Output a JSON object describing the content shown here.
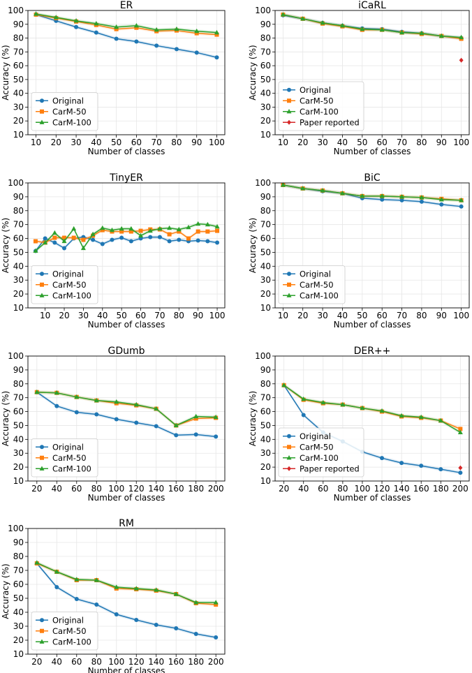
{
  "colors": {
    "original": "#1f77b4",
    "carm50": "#ff7f0e",
    "carm100": "#2ca02c",
    "paper": "#d62728",
    "grid": "#e6e6e6"
  },
  "chart_data": [
    {
      "type": "line",
      "title": "ER",
      "xlabel": "Number of classes",
      "ylabel": "Accuracy (%)",
      "xlim": [
        6,
        104
      ],
      "ylim": [
        10,
        100
      ],
      "xticks": [
        10,
        20,
        30,
        40,
        50,
        60,
        70,
        80,
        90,
        100
      ],
      "yticks": [
        10,
        20,
        30,
        40,
        50,
        60,
        70,
        80,
        90,
        100
      ],
      "grid": true,
      "legend_position": "lower-left",
      "series": [
        {
          "name": "Original",
          "key": "original",
          "marker": "circle",
          "x": [
            10,
            20,
            30,
            40,
            50,
            60,
            70,
            80,
            90,
            100
          ],
          "y": [
            97,
            92.5,
            88,
            84,
            79.5,
            77.5,
            74.5,
            72,
            69.5,
            66
          ]
        },
        {
          "name": "CarM-50",
          "key": "carm50",
          "marker": "square",
          "x": [
            10,
            20,
            30,
            40,
            50,
            60,
            70,
            80,
            90,
            100
          ],
          "y": [
            97,
            94.5,
            92,
            89.5,
            86.5,
            87.5,
            85,
            85.5,
            83.5,
            82.5
          ]
        },
        {
          "name": "CarM-100",
          "key": "carm100",
          "marker": "triangle",
          "x": [
            10,
            20,
            30,
            40,
            50,
            60,
            70,
            80,
            90,
            100
          ],
          "y": [
            97.5,
            95,
            92.5,
            90.5,
            88,
            89,
            86,
            86.5,
            85,
            84
          ]
        }
      ]
    },
    {
      "type": "line",
      "title": "iCaRL",
      "xlabel": "Number of classes",
      "ylabel": "Accuracy (%)",
      "xlim": [
        6,
        104
      ],
      "ylim": [
        10,
        100
      ],
      "xticks": [
        10,
        20,
        30,
        40,
        50,
        60,
        70,
        80,
        90,
        100
      ],
      "yticks": [
        10,
        20,
        30,
        40,
        50,
        60,
        70,
        80,
        90,
        100
      ],
      "grid": true,
      "legend_position": "lower-left",
      "series": [
        {
          "name": "Original",
          "key": "original",
          "marker": "circle",
          "x": [
            10,
            20,
            30,
            40,
            50,
            60,
            70,
            80,
            90,
            100
          ],
          "y": [
            96.5,
            94,
            91,
            89,
            87,
            86.5,
            84.5,
            83.5,
            81.5,
            80
          ]
        },
        {
          "name": "CarM-50",
          "key": "carm50",
          "marker": "square",
          "x": [
            10,
            20,
            30,
            40,
            50,
            60,
            70,
            80,
            90,
            100
          ],
          "y": [
            97,
            94,
            90.5,
            88.5,
            86,
            86,
            84,
            83,
            81.5,
            79.5
          ]
        },
        {
          "name": "CarM-100",
          "key": "carm100",
          "marker": "triangle",
          "x": [
            10,
            20,
            30,
            40,
            50,
            60,
            70,
            80,
            90,
            100
          ],
          "y": [
            97,
            94,
            91,
            89,
            86.5,
            86,
            84,
            83.5,
            81.5,
            80.5
          ]
        },
        {
          "name": "Paper reported",
          "key": "paper",
          "marker": "diamond",
          "x": [
            100
          ],
          "y": [
            64
          ]
        }
      ]
    },
    {
      "type": "line",
      "title": "TinyER",
      "xlabel": "Number of classes",
      "ylabel": "Accuracy (%)",
      "xlim": [
        1,
        104
      ],
      "ylim": [
        10,
        100
      ],
      "xticks": [
        10,
        20,
        30,
        40,
        50,
        60,
        70,
        80,
        90,
        100
      ],
      "yticks": [
        10,
        20,
        30,
        40,
        50,
        60,
        70,
        80,
        90,
        100
      ],
      "grid": true,
      "legend_position": "lower-left",
      "series": [
        {
          "name": "Original",
          "key": "original",
          "marker": "circle",
          "x": [
            5,
            10,
            15,
            20,
            25,
            30,
            35,
            40,
            45,
            50,
            55,
            60,
            65,
            70,
            75,
            80,
            85,
            90,
            95,
            100
          ],
          "y": [
            51,
            60,
            57,
            53,
            60,
            61,
            59,
            56,
            59,
            60.5,
            58,
            60,
            61,
            61,
            58,
            59,
            58,
            58.5,
            58,
            57
          ]
        },
        {
          "name": "CarM-50",
          "key": "carm50",
          "marker": "square",
          "x": [
            5,
            10,
            15,
            20,
            25,
            30,
            35,
            40,
            45,
            50,
            55,
            60,
            65,
            70,
            75,
            80,
            85,
            90,
            95,
            100
          ],
          "y": [
            58,
            57,
            60.5,
            60.5,
            60.5,
            59,
            62,
            66,
            65,
            65,
            65,
            65.5,
            66.5,
            66.5,
            63,
            65,
            60,
            65,
            65,
            65.5
          ]
        },
        {
          "name": "CarM-100",
          "key": "carm100",
          "marker": "triangle",
          "x": [
            5,
            10,
            15,
            20,
            25,
            30,
            35,
            40,
            45,
            50,
            55,
            60,
            65,
            70,
            75,
            80,
            85,
            90,
            95,
            100
          ],
          "y": [
            51,
            57,
            64,
            58,
            67,
            53,
            63,
            67.5,
            66,
            67,
            67,
            62,
            65.5,
            67,
            67.5,
            66.5,
            68,
            70.5,
            70,
            68.5
          ]
        }
      ]
    },
    {
      "type": "line",
      "title": "BiC",
      "xlabel": "Number of classes",
      "ylabel": "Accuracy (%)",
      "xlim": [
        6,
        104
      ],
      "ylim": [
        10,
        100
      ],
      "xticks": [
        10,
        20,
        30,
        40,
        50,
        60,
        70,
        80,
        90,
        100
      ],
      "yticks": [
        10,
        20,
        30,
        40,
        50,
        60,
        70,
        80,
        90,
        100
      ],
      "grid": true,
      "legend_position": "lower-left",
      "series": [
        {
          "name": "Original",
          "key": "original",
          "marker": "circle",
          "x": [
            10,
            20,
            30,
            40,
            50,
            60,
            70,
            80,
            90,
            100
          ],
          "y": [
            98.5,
            96,
            94,
            92.5,
            89,
            88,
            87.5,
            86.5,
            84.5,
            83
          ]
        },
        {
          "name": "CarM-50",
          "key": "carm50",
          "marker": "square",
          "x": [
            10,
            20,
            30,
            40,
            50,
            60,
            70,
            80,
            90,
            100
          ],
          "y": [
            98.5,
            96,
            94.5,
            92.5,
            90.5,
            90.5,
            90,
            89.5,
            88.5,
            87.5
          ]
        },
        {
          "name": "CarM-100",
          "key": "carm100",
          "marker": "triangle",
          "x": [
            10,
            20,
            30,
            40,
            50,
            60,
            70,
            80,
            90,
            100
          ],
          "y": [
            98.5,
            96,
            94.5,
            92.5,
            90.5,
            90.5,
            90,
            89.5,
            88,
            87.5
          ]
        }
      ]
    },
    {
      "type": "line",
      "title": "GDumb",
      "xlabel": "Number of classes",
      "ylabel": "Accuracy (%)",
      "xlim": [
        11,
        209
      ],
      "ylim": [
        10,
        100
      ],
      "xticks": [
        20,
        40,
        60,
        80,
        100,
        120,
        140,
        160,
        180,
        200
      ],
      "yticks": [
        10,
        20,
        30,
        40,
        50,
        60,
        70,
        80,
        90,
        100
      ],
      "grid": true,
      "legend_position": "lower-left",
      "series": [
        {
          "name": "Original",
          "key": "original",
          "marker": "circle",
          "x": [
            20,
            40,
            60,
            80,
            100,
            120,
            140,
            160,
            180,
            200
          ],
          "y": [
            74,
            64,
            59.5,
            58,
            54.5,
            52,
            49.5,
            43,
            43.5,
            42
          ]
        },
        {
          "name": "CarM-50",
          "key": "carm50",
          "marker": "square",
          "x": [
            20,
            40,
            60,
            80,
            100,
            120,
            140,
            160,
            180,
            200
          ],
          "y": [
            74,
            73.5,
            70.5,
            68,
            66,
            64.5,
            62,
            50,
            55,
            55.5
          ]
        },
        {
          "name": "CarM-100",
          "key": "carm100",
          "marker": "triangle",
          "x": [
            20,
            40,
            60,
            80,
            100,
            120,
            140,
            160,
            180,
            200
          ],
          "y": [
            74,
            73.5,
            70.5,
            68,
            67,
            65,
            62,
            50,
            56.5,
            56
          ]
        }
      ]
    },
    {
      "type": "line",
      "title": "DER++",
      "xlabel": "Number of classes",
      "ylabel": "Accuracy (%)",
      "xlim": [
        11,
        209
      ],
      "ylim": [
        10,
        100
      ],
      "xticks": [
        20,
        40,
        60,
        80,
        100,
        120,
        140,
        160,
        180,
        200
      ],
      "yticks": [
        10,
        20,
        30,
        40,
        50,
        60,
        70,
        80,
        90,
        100
      ],
      "grid": true,
      "legend_position": "lower-left",
      "series": [
        {
          "name": "Original",
          "key": "original",
          "marker": "circle",
          "x": [
            20,
            40,
            60,
            80,
            100,
            120,
            140,
            160,
            180,
            200
          ],
          "y": [
            79,
            57.5,
            45,
            38.5,
            31,
            26.5,
            23,
            21,
            18.5,
            16
          ]
        },
        {
          "name": "CarM-50",
          "key": "carm50",
          "marker": "square",
          "x": [
            20,
            40,
            60,
            80,
            100,
            120,
            140,
            160,
            180,
            200
          ],
          "y": [
            79,
            68.5,
            66,
            65,
            62.5,
            60,
            56.5,
            55.5,
            53.5,
            47.5
          ]
        },
        {
          "name": "CarM-100",
          "key": "carm100",
          "marker": "triangle",
          "x": [
            20,
            40,
            60,
            80,
            100,
            120,
            140,
            160,
            180,
            200
          ],
          "y": [
            79,
            69,
            66.5,
            65,
            62.5,
            60.5,
            57,
            56,
            53.5,
            45
          ]
        },
        {
          "name": "Paper reported",
          "key": "paper",
          "marker": "diamond",
          "x": [
            200
          ],
          "y": [
            19.5
          ]
        }
      ]
    },
    {
      "type": "line",
      "title": "RM",
      "xlabel": "Number of classes",
      "ylabel": "Accuracy (%)",
      "xlim": [
        11,
        209
      ],
      "ylim": [
        10,
        100
      ],
      "xticks": [
        20,
        40,
        60,
        80,
        100,
        120,
        140,
        160,
        180,
        200
      ],
      "yticks": [
        10,
        20,
        30,
        40,
        50,
        60,
        70,
        80,
        90,
        100
      ],
      "grid": true,
      "legend_position": "lower-left",
      "series": [
        {
          "name": "Original",
          "key": "original",
          "marker": "circle",
          "x": [
            20,
            40,
            60,
            80,
            100,
            120,
            140,
            160,
            180,
            200
          ],
          "y": [
            75,
            58,
            49.5,
            45.5,
            38.5,
            34.5,
            31,
            28.5,
            24.5,
            22
          ]
        },
        {
          "name": "CarM-50",
          "key": "carm50",
          "marker": "square",
          "x": [
            20,
            40,
            60,
            80,
            100,
            120,
            140,
            160,
            180,
            200
          ],
          "y": [
            75,
            69,
            63,
            63,
            57,
            56.5,
            55.5,
            53,
            46.5,
            45.5
          ]
        },
        {
          "name": "CarM-100",
          "key": "carm100",
          "marker": "triangle",
          "x": [
            20,
            40,
            60,
            80,
            100,
            120,
            140,
            160,
            180,
            200
          ],
          "y": [
            75.5,
            69,
            63.5,
            63,
            58,
            57,
            56,
            53,
            47,
            47
          ]
        }
      ]
    }
  ]
}
